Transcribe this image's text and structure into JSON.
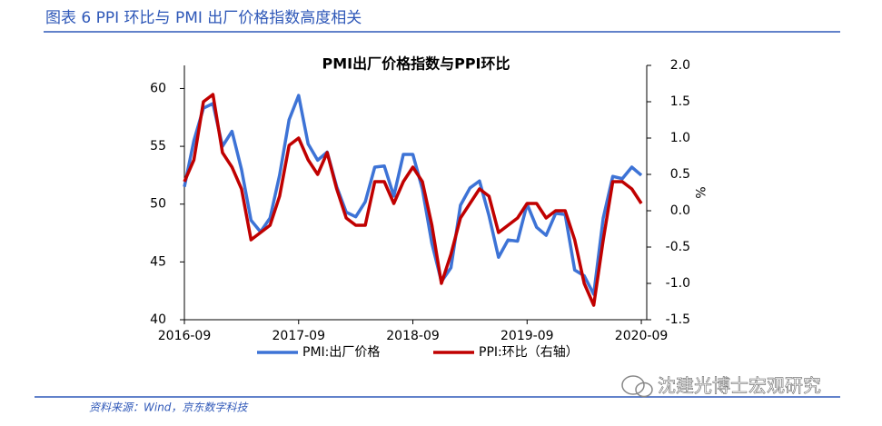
{
  "header": {
    "title": "图表 6 PPI 环比与 PMI 出厂价格指数高度相关"
  },
  "chart_data": {
    "type": "line",
    "title": "PMI出厂价格指数与PPI环比",
    "categories": [
      "2016-09",
      null,
      null,
      null,
      null,
      null,
      null,
      null,
      null,
      null,
      null,
      null,
      "2017-09",
      null,
      null,
      null,
      null,
      null,
      null,
      null,
      null,
      null,
      null,
      null,
      "2018-09",
      null,
      null,
      null,
      null,
      null,
      null,
      null,
      null,
      null,
      null,
      null,
      "2019-09",
      null,
      null,
      null,
      null,
      null,
      null,
      null,
      null,
      null,
      null,
      null,
      "2020-09"
    ],
    "series": [
      {
        "name": "PMI:出厂价格",
        "color": "#3d73d6",
        "values": [
          51.5,
          55.5,
          58.3,
          58.7,
          55.0,
          56.3,
          53.0,
          48.6,
          47.6,
          48.8,
          52.5,
          57.3,
          59.4,
          55.2,
          53.8,
          54.5,
          51.5,
          49.3,
          48.9,
          50.2,
          53.2,
          53.3,
          50.7,
          54.3,
          54.3,
          51.3,
          46.6,
          43.3,
          44.5,
          49.9,
          51.4,
          52.0,
          49.0,
          45.4,
          46.9,
          46.8,
          50.0,
          48.0,
          47.3,
          49.2,
          49.1,
          44.3,
          43.8,
          42.2,
          48.8,
          52.4,
          52.2,
          53.2,
          52.5
        ]
      },
      {
        "name": "PPI:环比（右轴）",
        "color": "#c00000",
        "axis": "y2",
        "values": [
          0.4,
          0.7,
          1.5,
          1.6,
          0.8,
          0.6,
          0.3,
          -0.4,
          -0.3,
          -0.2,
          0.2,
          0.9,
          1.0,
          0.7,
          0.5,
          0.8,
          0.3,
          -0.1,
          -0.2,
          -0.2,
          0.4,
          0.4,
          0.1,
          0.4,
          0.6,
          0.4,
          -0.2,
          -1.0,
          -0.6,
          -0.1,
          0.1,
          0.3,
          0.2,
          -0.3,
          -0.2,
          -0.1,
          0.1,
          0.1,
          -0.1,
          0.0,
          0.0,
          -0.4,
          -1.0,
          -1.3,
          -0.4,
          0.4,
          0.4,
          0.3,
          0.1
        ]
      }
    ],
    "ylim": [
      40,
      62
    ],
    "yticks": [
      40,
      45,
      50,
      55,
      60
    ],
    "y2lim": [
      -1.5,
      2.0
    ],
    "y2ticks": [
      {
        "value": -1.5,
        "label": "-1.5"
      },
      {
        "value": -1.0,
        "label": "-1.0"
      },
      {
        "value": -0.5,
        "label": "-0.5"
      },
      {
        "value": 0,
        "label": "0.0"
      },
      0.5,
      {
        "value": 1.0,
        "label": "1.0"
      },
      1.5,
      {
        "value": 2.0,
        "label": "2.0"
      }
    ],
    "y2label": "%",
    "grid": false,
    "legend": "bottom"
  },
  "source": "资料来源：Wind，京东数字科技",
  "watermark": "沈建光博士宏观研究"
}
